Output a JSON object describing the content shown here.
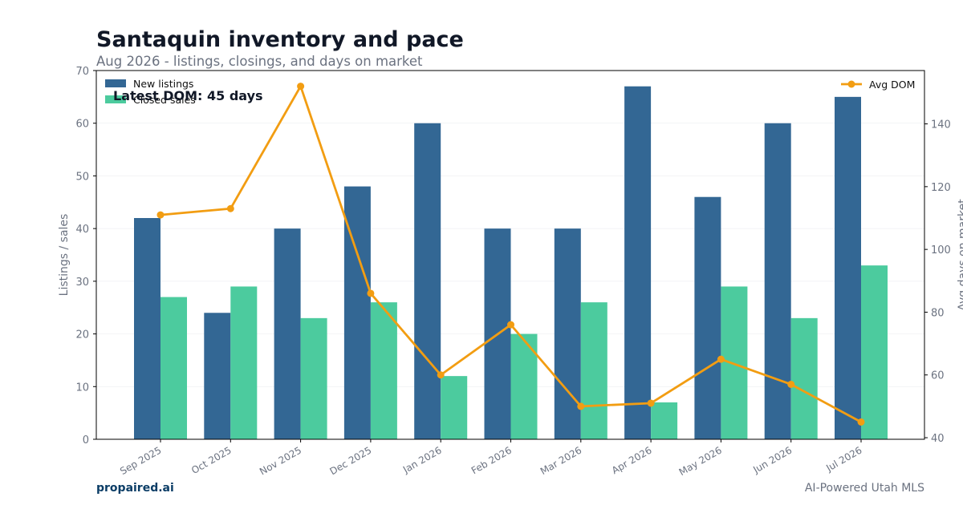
{
  "header": {
    "title": "Santaquin inventory and pace",
    "subtitle": "Aug 2026 - listings, closings, and days on market"
  },
  "footer": {
    "brand": "propaired.ai",
    "source": "AI-Powered Utah MLS"
  },
  "annotation": "Latest DOM: 45 days",
  "colors": {
    "new_listings": "#336794",
    "closed_sales": "#4ccb9e",
    "avg_dom": "#f29d12",
    "axis_text": "#6b7280",
    "title": "#111827"
  },
  "chart_data": {
    "type": "bar",
    "categories": [
      "Sep 2025",
      "Oct 2025",
      "Nov 2025",
      "Dec 2025",
      "Jan 2026",
      "Feb 2026",
      "Mar 2026",
      "Apr 2026",
      "May 2026",
      "Jun 2026",
      "Jul 2026"
    ],
    "series": [
      {
        "name": "New listings",
        "type": "bar",
        "axis": "left",
        "values": [
          42,
          24,
          40,
          48,
          60,
          40,
          40,
          67,
          46,
          60,
          65
        ]
      },
      {
        "name": "Closed sales",
        "type": "bar",
        "axis": "left",
        "values": [
          27,
          29,
          23,
          26,
          12,
          20,
          26,
          7,
          29,
          23,
          33
        ]
      },
      {
        "name": "Avg DOM",
        "type": "line",
        "axis": "right",
        "values": [
          111,
          113,
          152,
          86,
          60,
          76,
          50,
          51,
          65,
          57,
          45
        ]
      }
    ],
    "ylabel": "Listings / sales",
    "y2label": "Avg days on market",
    "ylim": [
      0,
      70
    ],
    "y2lim": [
      39.5,
      157
    ],
    "yticks": [
      0,
      10,
      20,
      30,
      40,
      50,
      60,
      70
    ],
    "y2ticks": [
      40,
      60,
      80,
      100,
      120,
      140
    ],
    "grid": true,
    "legend_left_position": "top-left",
    "legend_right_position": "top-right"
  }
}
